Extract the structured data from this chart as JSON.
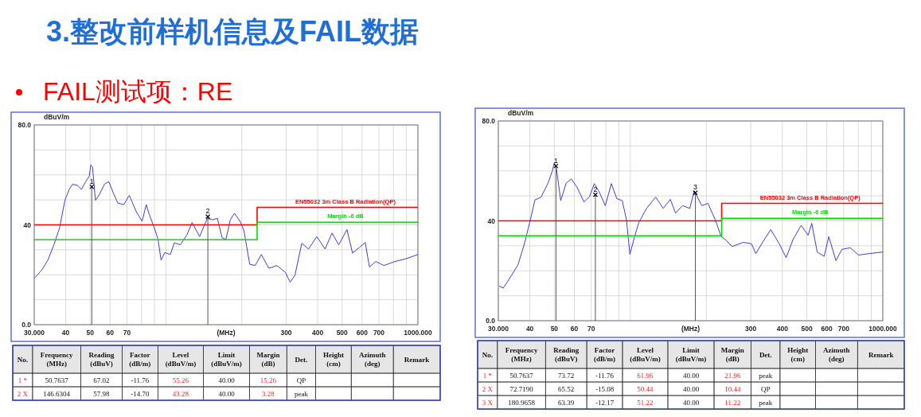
{
  "chart_data": [
    {
      "type": "line",
      "title": "3.整改前样机信息及FAIL数据",
      "subtitle": "FAIL测试项：RE",
      "xlabel": "(MHz)",
      "ylabel": "dBuV/m",
      "log": "x",
      "grid": true,
      "xlim": [
        30,
        1000
      ],
      "xticks": [
        {
          "value": 30,
          "label": "30.000"
        },
        40,
        50,
        60,
        70,
        {
          "value": 80,
          "label": null
        },
        {
          "value": 90,
          "label": null
        },
        {
          "value": 100,
          "label": null
        },
        {
          "value": 200,
          "label": null
        },
        300,
        400,
        500,
        600,
        700,
        {
          "value": 800,
          "label": null
        },
        {
          "value": 900,
          "label": null
        },
        {
          "value": 1000,
          "label": "1000.000"
        }
      ],
      "ylim": [
        0,
        80
      ],
      "yticks": [
        {
          "value": 0,
          "label": "0.0"
        },
        {
          "value": 10,
          "label": null
        },
        {
          "value": 20,
          "label": null
        },
        {
          "value": 30,
          "label": null
        },
        40,
        {
          "value": 50,
          "label": null
        },
        {
          "value": 60,
          "label": null
        },
        {
          "value": 70,
          "label": null
        },
        {
          "value": 80,
          "label": "80.0"
        }
      ],
      "series": [
        {
          "color": "#3c3cf0",
          "x": [
            30.1,
            32.2,
            34.0,
            35.9,
            37.8,
            39.7,
            41.3,
            42.5,
            44.4,
            46.2,
            48.0,
            49.6,
            50.3,
            51.1,
            52.5,
            54.3,
            57.1,
            59.3,
            61.9,
            64.4,
            68.0,
            71.5,
            76.2,
            80.4,
            83.5,
            85.8,
            89.6,
            93.0,
            95.6,
            99.0,
            104,
            108,
            114,
            121,
            127,
            136,
            142,
            146,
            153,
            160,
            167,
            173,
            180,
            187,
            197,
            204,
            215,
            226,
            239,
            256,
            276,
            298,
            311,
            325,
            346,
            368,
            397,
            428,
            456,
            485,
            523,
            550,
            585,
            618,
            642,
            680,
            733,
            810,
            896,
            1000
          ],
          "values": [
            18.7,
            22,
            25.9,
            32,
            38.7,
            49.8,
            54.2,
            56.2,
            55.9,
            54.2,
            57.3,
            59.4,
            64,
            63.1,
            49.8,
            52,
            56.4,
            57.3,
            52.6,
            48.7,
            48.1,
            51.8,
            45.3,
            41.4,
            48.1,
            44.2,
            39.2,
            34.2,
            25.9,
            28.9,
            28.1,
            32.8,
            32,
            35.9,
            40.9,
            35.3,
            39.8,
            42.6,
            42,
            42.6,
            34.8,
            34.2,
            42,
            44.6,
            41.4,
            37.6,
            24.2,
            23.7,
            28.1,
            22.6,
            23.7,
            20.9,
            17,
            19.8,
            32.6,
            30.3,
            35.3,
            30.3,
            36.7,
            32,
            38.1,
            28.7,
            30.9,
            32.9,
            23.1,
            25.3,
            23.7,
            25.3,
            26.4,
            28.1
          ]
        },
        {
          "type": "step",
          "name": "EN55032 3m Class B Radiation(QP)",
          "color": "#ff0000",
          "x": [
            30,
            230,
            1000
          ],
          "values": [
            40,
            47,
            47
          ]
        },
        {
          "type": "step",
          "name": "Margin -6 dB",
          "color": "#00e000",
          "x": [
            30,
            230,
            1000
          ],
          "values": [
            34,
            41,
            41
          ]
        },
        {
          "type": "lollipop",
          "color": "#000000",
          "marker": "cross",
          "x": [
            50.7637,
            146.6304
          ],
          "values": [
            55.26,
            43.28
          ]
        }
      ],
      "annotations": [
        {
          "text": "1",
          "x": 50.7637,
          "y": 55.26
        },
        {
          "text": "2",
          "x": 146.6304,
          "y": 43.28
        },
        "No.",
        "Frequency\n(MHz)",
        "Reading\n(dBuV)",
        "Factor\n(dB/m)",
        "Level\n(dBuV/m)",
        "Limit\n(dBuV/m)",
        "Margin\n(dB)",
        "Det.",
        "Height\n(cm)",
        "Azimuth\n(deg)",
        "Remark",
        "1 *",
        "50.7637",
        "67.02",
        "-11.76",
        "55.26",
        "40.00",
        "15.26",
        "QP",
        null,
        null,
        null,
        "2 X",
        "146.6304",
        "57.98",
        "-14.70",
        "43.28",
        "40.00",
        "3.28",
        "peak",
        null,
        null,
        null
      ]
    },
    {
      "type": "line",
      "xlabel": "(MHz)",
      "ylabel": "dBuV/m",
      "log": "x",
      "grid": true,
      "xlim": [
        30,
        1000
      ],
      "xticks": [
        {
          "value": 30,
          "label": "30.000"
        },
        40,
        50,
        60,
        70,
        {
          "value": 80,
          "label": null
        },
        {
          "value": 90,
          "label": null
        },
        {
          "value": 100,
          "label": null
        },
        {
          "value": 200,
          "label": null
        },
        300,
        400,
        500,
        600,
        700,
        {
          "value": 800,
          "label": null
        },
        {
          "value": 900,
          "label": null
        },
        {
          "value": 1000,
          "label": "1000.000"
        }
      ],
      "ylim": [
        0,
        80
      ],
      "yticks": [
        {
          "value": 0,
          "label": "0.0"
        },
        {
          "value": 10,
          "label": null
        },
        {
          "value": 20,
          "label": null
        },
        {
          "value": 30,
          "label": null
        },
        40,
        {
          "value": 50,
          "label": null
        },
        {
          "value": 60,
          "label": null
        },
        {
          "value": 70,
          "label": null
        },
        {
          "value": 80,
          "label": "80.0"
        }
      ],
      "series": [
        {
          "color": "#3c3cf0",
          "x": [
            30.2,
            31.4,
            33.7,
            35.9,
            38.2,
            40.2,
            41.9,
            44.3,
            47.2,
            49.0,
            50.0,
            51.0,
            53.0,
            55.7,
            58.4,
            61.5,
            65.5,
            68.8,
            72.0,
            75.1,
            79.6,
            84.1,
            88.4,
            92.9,
            96.5,
            99.6,
            104,
            108,
            116,
            126,
            135,
            144,
            151,
            161,
            172,
            179,
            192,
            203,
            218,
            229,
            238,
            253,
            280,
            302,
            314,
            334,
            360,
            389,
            414,
            441,
            475,
            506,
            523,
            550,
            586,
            611,
            652,
            689,
            743,
            801,
            885,
            1000
          ],
          "values": [
            13.9,
            13.1,
            17.9,
            22.4,
            31.4,
            40.5,
            48.4,
            49.5,
            55.1,
            59.7,
            63.3,
            60.8,
            48.1,
            55.1,
            56.8,
            53.4,
            47.6,
            49.5,
            54.9,
            51.8,
            46.1,
            54.9,
            48.9,
            48.1,
            40.5,
            26.6,
            33.7,
            39.3,
            45.0,
            49.5,
            45.0,
            48.6,
            43.1,
            46.1,
            45.0,
            52.0,
            46.1,
            47.0,
            39.9,
            33.7,
            32.5,
            29.7,
            31.4,
            30.8,
            26.9,
            31.4,
            36.5,
            30.8,
            25.2,
            32.5,
            38.2,
            34.2,
            39.0,
            27.5,
            25.8,
            33.7,
            24.1,
            28.6,
            29.2,
            26.3,
            26.9,
            27.5
          ]
        },
        {
          "type": "step",
          "name": "EN55032 3m Class B Radiation(QP)",
          "color": "#ff0000",
          "x": [
            30,
            230,
            1000
          ],
          "values": [
            40,
            47,
            47
          ]
        },
        {
          "type": "step",
          "name": "Margin -6 dB",
          "color": "#00e000",
          "x": [
            30,
            230,
            1000
          ],
          "values": [
            34,
            41,
            41
          ]
        },
        {
          "type": "lollipop",
          "color": "#000000",
          "marker": "cross",
          "x": [
            50.7637,
            72.719,
            180.9658
          ],
          "values": [
            61.96,
            50.44,
            51.22
          ]
        }
      ],
      "annotations": [
        {
          "text": "1",
          "x": 50.7637,
          "y": 61.96
        },
        {
          "text": "2",
          "x": 72.719,
          "y": 50.44
        },
        {
          "text": "3",
          "x": 180.9658,
          "y": 51.22
        },
        "No.",
        "Frequency\n(MHz)",
        "Reading\n(dBuV)",
        "Factor\n(dB/m)",
        "Level\n(dBuV/m)",
        "Limit\n(dBuV/m)",
        "Margin\n(dB)",
        "Det.",
        "Height\n(cm)",
        "Azimuth\n(deg)",
        "Remark",
        "1 *",
        "50.7637",
        "73.72",
        "-11.76",
        "61.96",
        "40.00",
        "21.96",
        "peak",
        null,
        null,
        null,
        "2 X",
        "72.7190",
        "65.52",
        "-15.08",
        "50.44",
        "40.00",
        "10.44",
        "QP",
        null,
        null,
        null,
        "3 X",
        "180.9658",
        "63.39",
        "-12.17",
        "51.22",
        "40.00",
        "11.22",
        "peak",
        null,
        null,
        null
      ]
    }
  ]
}
